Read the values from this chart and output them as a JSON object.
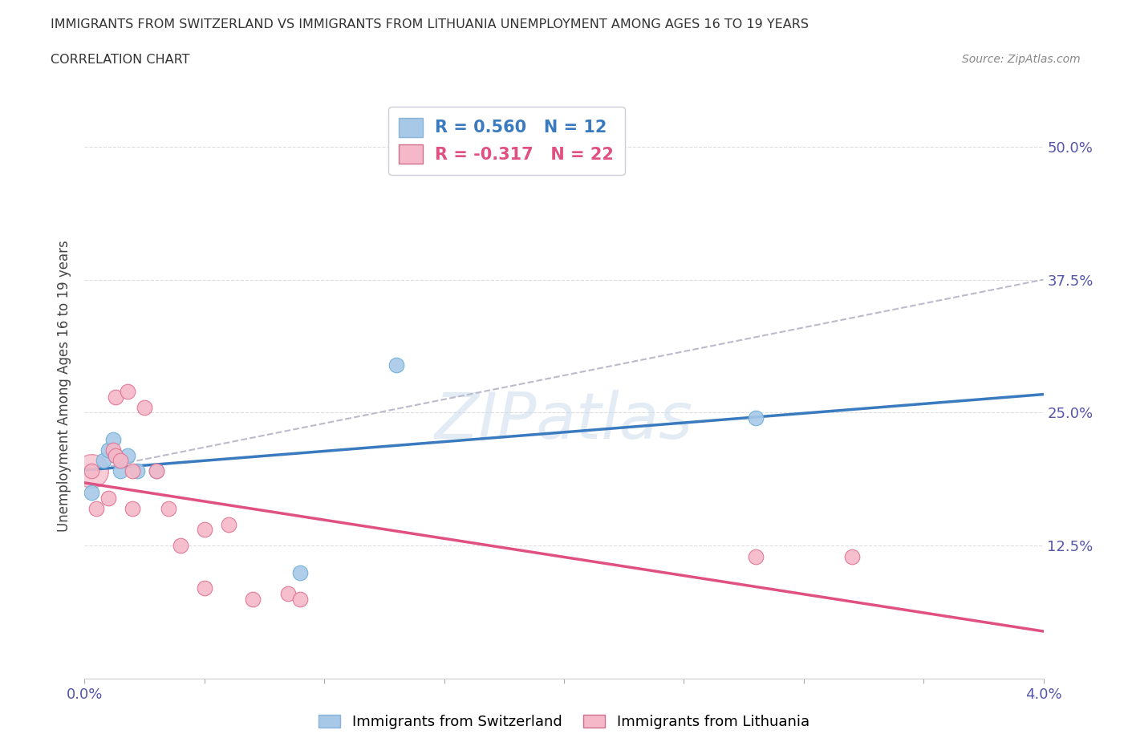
{
  "title_line1": "IMMIGRANTS FROM SWITZERLAND VS IMMIGRANTS FROM LITHUANIA UNEMPLOYMENT AMONG AGES 16 TO 19 YEARS",
  "title_line2": "CORRELATION CHART",
  "source": "Source: ZipAtlas.com",
  "xlabel_label": "Immigrants from Switzerland",
  "ylabel_label": "Unemployment Among Ages 16 to 19 years",
  "legend_label2": "Immigrants from Lithuania",
  "r_switzerland": 0.56,
  "n_switzerland": 12,
  "r_lithuania": -0.317,
  "n_lithuania": 22,
  "swiss_color": "#a8c8e8",
  "swiss_edge_color": "#6baed6",
  "lith_color": "#f4b8c8",
  "lith_edge_color": "#e07090",
  "swiss_line_color": "#3a7abf",
  "lith_line_color": "#e05080",
  "trend_line_color": "#bbbbcc",
  "xlim": [
    0.0,
    0.04
  ],
  "ylim": [
    0.0,
    0.55
  ],
  "xticks": [
    0.0,
    0.005,
    0.01,
    0.015,
    0.02,
    0.025,
    0.03,
    0.035,
    0.04
  ],
  "xtick_labels": [
    "0.0%",
    "",
    "",
    "",
    "",
    "",
    "",
    "",
    "4.0%"
  ],
  "yticks": [
    0.0,
    0.125,
    0.25,
    0.375,
    0.5
  ],
  "ytick_labels_right": [
    "",
    "12.5%",
    "25.0%",
    "37.5%",
    "50.0%"
  ],
  "swiss_x": [
    0.0003,
    0.0008,
    0.001,
    0.0012,
    0.0013,
    0.0015,
    0.0018,
    0.0022,
    0.003,
    0.009,
    0.013,
    0.028
  ],
  "swiss_y": [
    0.175,
    0.205,
    0.215,
    0.225,
    0.21,
    0.195,
    0.21,
    0.195,
    0.195,
    0.1,
    0.295,
    0.245
  ],
  "lith_x": [
    0.0003,
    0.0005,
    0.001,
    0.0012,
    0.0013,
    0.0013,
    0.0015,
    0.0018,
    0.002,
    0.002,
    0.0025,
    0.003,
    0.0035,
    0.004,
    0.005,
    0.005,
    0.006,
    0.007,
    0.0085,
    0.009,
    0.028,
    0.032
  ],
  "lith_y": [
    0.195,
    0.16,
    0.17,
    0.215,
    0.21,
    0.265,
    0.205,
    0.27,
    0.16,
    0.195,
    0.255,
    0.195,
    0.16,
    0.125,
    0.14,
    0.085,
    0.145,
    0.075,
    0.08,
    0.075,
    0.115,
    0.115
  ],
  "watermark_text": "ZIPatlas",
  "background_color": "#ffffff",
  "grid_color": "#dddddd",
  "title_color": "#333333",
  "axis_label_color": "#444444",
  "tick_color": "#5555aa",
  "source_color": "#888888"
}
